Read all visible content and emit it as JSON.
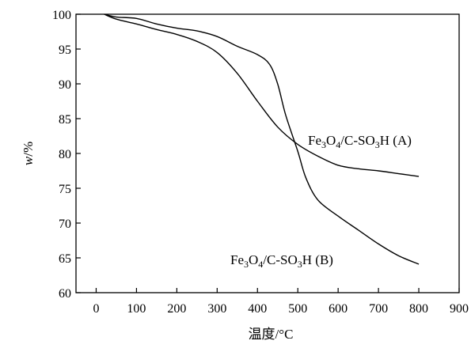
{
  "chart_data": {
    "type": "line",
    "xlabel": "温度/°C",
    "ylabel_italic": "w",
    "ylabel_rest": "/%",
    "xlim": [
      -50,
      900
    ],
    "ylim": [
      60,
      100
    ],
    "xticks": [
      0,
      100,
      200,
      300,
      400,
      500,
      600,
      700,
      800,
      900
    ],
    "yticks": [
      60,
      65,
      70,
      75,
      80,
      85,
      90,
      95,
      100
    ],
    "grid": false,
    "legend": "none",
    "series": [
      {
        "name": "Fe3O4/C-SO3H (A)",
        "label_parts": [
          "Fe",
          "3",
          "O",
          "4",
          "/C-SO",
          "3",
          "H (A)"
        ],
        "x": [
          20,
          50,
          100,
          150,
          200,
          250,
          300,
          350,
          400,
          450,
          500,
          550,
          600,
          650,
          700,
          750,
          800
        ],
        "y": [
          100,
          99.3,
          98.6,
          97.8,
          97.1,
          96.1,
          94.5,
          91.5,
          87.5,
          83.8,
          81.3,
          79.6,
          78.3,
          77.8,
          77.5,
          77.1,
          76.7
        ]
      },
      {
        "name": "Fe3O4/C-SO3H (B)",
        "label_parts": [
          "Fe",
          "3",
          "O",
          "4",
          "/C-SO",
          "3",
          "H (B)"
        ],
        "x": [
          20,
          50,
          100,
          150,
          200,
          250,
          300,
          350,
          400,
          430,
          450,
          470,
          500,
          520,
          550,
          600,
          650,
          700,
          750,
          800
        ],
        "y": [
          100,
          99.6,
          99.4,
          98.6,
          98.0,
          97.6,
          96.8,
          95.4,
          94.2,
          92.8,
          90.0,
          85.5,
          80.3,
          76.5,
          73.3,
          71.0,
          69.0,
          67.0,
          65.3,
          64.1
        ]
      }
    ]
  }
}
